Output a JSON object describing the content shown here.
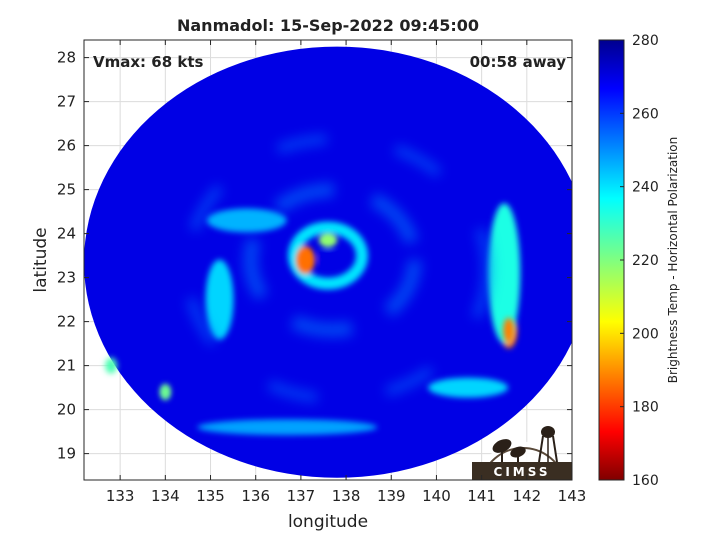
{
  "chart_data": {
    "type": "heatmap",
    "title": "Nanmadol: 15-Sep-2022 09:45:00",
    "annotations": {
      "left": "Vmax: 68 kts",
      "right": "00:58 away"
    },
    "xlabel": "longitude",
    "ylabel": "latitude",
    "xlim": [
      132.2,
      143.0
    ],
    "ylim": [
      18.4,
      28.4
    ],
    "xticks": [
      133,
      134,
      135,
      136,
      137,
      138,
      139,
      140,
      141,
      142,
      143
    ],
    "yticks": [
      19,
      20,
      21,
      22,
      23,
      24,
      25,
      26,
      27,
      28
    ],
    "grid": true,
    "colorbar": {
      "label": "Brightness Temp - Horizontal Polarization",
      "range": [
        160,
        280
      ],
      "ticks": [
        160,
        180,
        200,
        220,
        240,
        260,
        280
      ],
      "colormap": "jet",
      "orientation": "vertical, right"
    },
    "swath": {
      "center": [
        137.8,
        23.35
      ],
      "radius_lon": 5.6,
      "radius_lat": 4.9
    },
    "background_value": 268,
    "features": [
      {
        "name": "eye",
        "lon": 137.6,
        "lat": 23.45,
        "value": 268
      },
      {
        "name": "eyewall-inner-ring",
        "lon": 137.6,
        "lat": 23.5,
        "value": 238
      },
      {
        "name": "warm-spot-west-eyewall",
        "lon": 137.1,
        "lat": 23.4,
        "value": 188
      },
      {
        "name": "warm-spot-north-eyewall",
        "lon": 137.6,
        "lat": 23.85,
        "value": 218
      },
      {
        "name": "east-band-max",
        "lon": 141.6,
        "lat": 21.8,
        "value": 190
      },
      {
        "name": "east-band",
        "lon": 141.5,
        "lat": 23.1,
        "value": 232
      },
      {
        "name": "southeast-band",
        "lon": 140.7,
        "lat": 20.5,
        "value": 240
      },
      {
        "name": "south-band",
        "lon": 136.7,
        "lat": 19.6,
        "value": 246
      },
      {
        "name": "west-band",
        "lon": 135.2,
        "lat": 22.5,
        "value": 240
      },
      {
        "name": "northwest-band",
        "lon": 135.8,
        "lat": 24.3,
        "value": 244
      },
      {
        "name": "west-edge-warm",
        "lon": 132.8,
        "lat": 21.0,
        "value": 226
      },
      {
        "name": "west-edge-warm-2",
        "lon": 134.0,
        "lat": 20.4,
        "value": 222
      }
    ]
  },
  "logo": {
    "text": "CIMSS"
  }
}
